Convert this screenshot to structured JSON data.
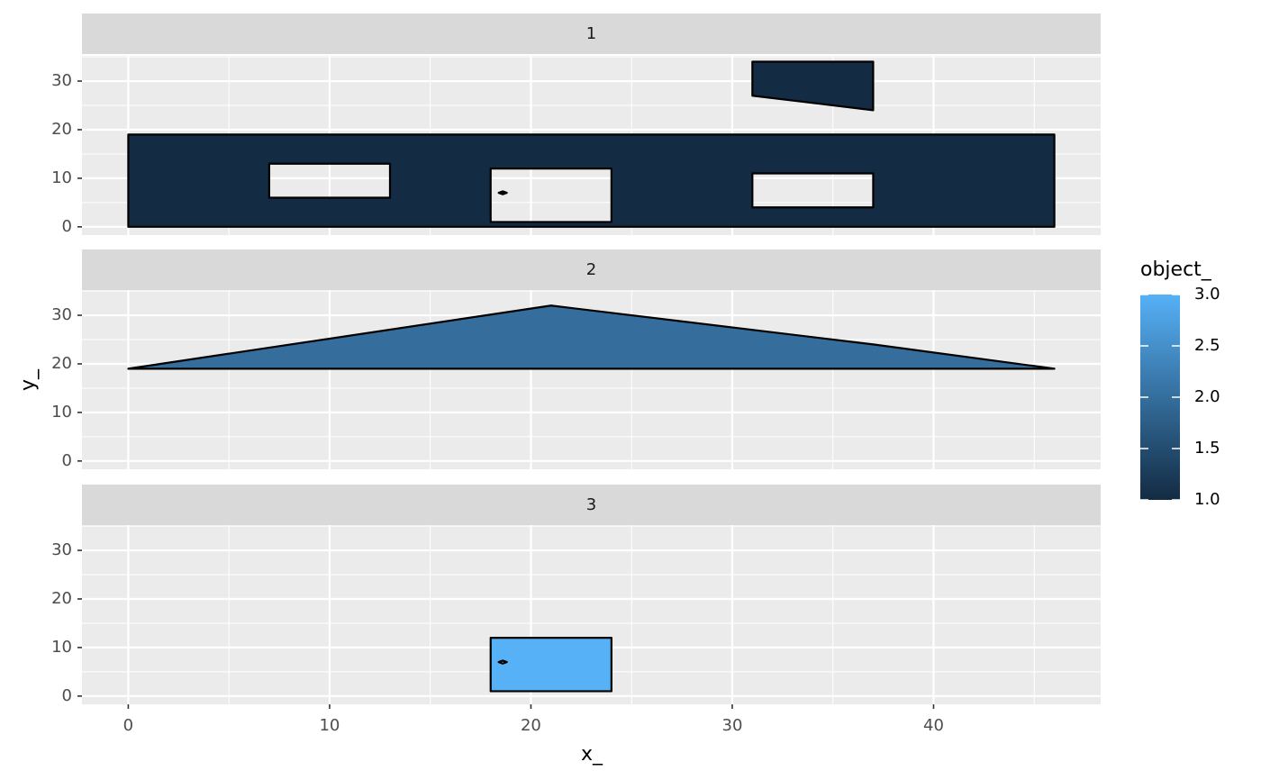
{
  "chart_data": {
    "type": "polygon",
    "x_label": "x_",
    "y_label": "y_",
    "xlim": [
      -2.3,
      48.3
    ],
    "xticks": [
      0,
      10,
      20,
      30,
      40
    ],
    "ylim": [
      -1.7,
      35.2
    ],
    "yticks": [
      0,
      10,
      20,
      30
    ],
    "grid": true,
    "colorscale": {
      "title": "object_",
      "low": "#132B43",
      "high": "#56B1F7",
      "limits": [
        1,
        3
      ],
      "ticks": [
        {
          "value": 1,
          "label": "1.0"
        },
        {
          "value": 1.5,
          "label": "1.5"
        },
        {
          "value": 2,
          "label": "2.0"
        },
        {
          "value": 2.5,
          "label": "2.5"
        },
        {
          "value": 3,
          "label": "3.0"
        }
      ]
    },
    "legend_position": "right",
    "panels": [
      {
        "label": "1",
        "polygons": [
          {
            "object": 1,
            "rings": [
              {
                "x": [
                  0,
                  46,
                  46,
                  0
                ],
                "y": [
                  0,
                  0,
                  19,
                  19
                ]
              },
              {
                "x": [
                  7,
                  13,
                  13,
                  7
                ],
                "y": [
                  6,
                  6,
                  13,
                  13
                ]
              },
              {
                "x": [
                  18,
                  24,
                  24,
                  18
                ],
                "y": [
                  1,
                  1,
                  12,
                  12
                ]
              },
              {
                "x": [
                  31,
                  37,
                  37,
                  31
                ],
                "y": [
                  4,
                  4,
                  11,
                  11
                ]
              },
              {
                "x": [
                  18.4,
                  18.6,
                  18.8,
                  18.6
                ],
                "y": [
                  7,
                  7.3,
                  7,
                  6.7
                ]
              }
            ]
          },
          {
            "object": 1,
            "rings": [
              {
                "x": [
                  31,
                  31,
                  37,
                  37
                ],
                "y": [
                  27,
                  34,
                  34,
                  24
                ]
              }
            ]
          }
        ]
      },
      {
        "label": "2",
        "polygons": [
          {
            "object": 2,
            "rings": [
              {
                "x": [
                  0,
                  21,
                  37,
                  46
                ],
                "y": [
                  19,
                  32,
                  24,
                  19
                ]
              }
            ]
          }
        ]
      },
      {
        "label": "3",
        "polygons": [
          {
            "object": 3,
            "rings": [
              {
                "x": [
                  18,
                  24,
                  24,
                  18
                ],
                "y": [
                  1,
                  1,
                  12,
                  12
                ]
              },
              {
                "x": [
                  18.4,
                  18.6,
                  18.8,
                  18.6
                ],
                "y": [
                  7,
                  7.3,
                  7,
                  6.7
                ]
              }
            ]
          }
        ]
      }
    ]
  }
}
